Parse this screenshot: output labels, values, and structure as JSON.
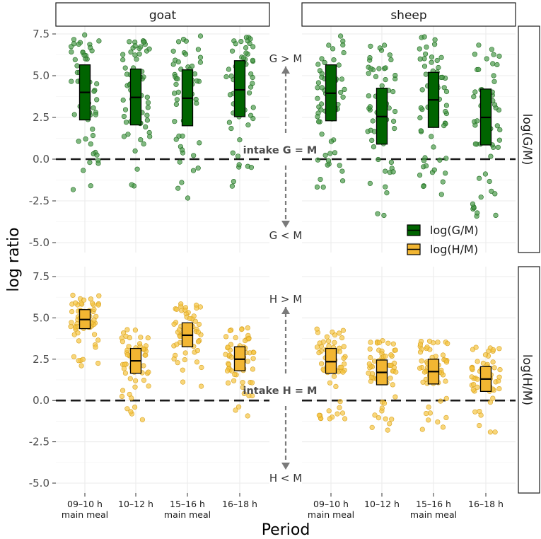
{
  "chart_data": {
    "type": "scatter",
    "ylabel": "log ratio",
    "xlabel": "Period",
    "ylim": [
      -5.3,
      7.6
    ],
    "yticks": [
      -5.0,
      -2.5,
      0.0,
      2.5,
      5.0,
      7.5
    ],
    "ytick_labels": [
      "-5.0",
      "-2.5",
      "0.0",
      "2.5",
      "5.0",
      "7.5"
    ],
    "reference_line_y": 0,
    "columns": [
      "goat",
      "sheep"
    ],
    "rows": [
      "log(G/M)",
      "log(H/M)"
    ],
    "categories": [
      {
        "line1": "09–10 h",
        "line2": "main meal"
      },
      {
        "line1": "10–12 h",
        "line2": ""
      },
      {
        "line1": "15–16 h",
        "line2": "main meal"
      },
      {
        "line1": "16–18 h",
        "line2": ""
      }
    ],
    "colors": {
      "G": "#006400",
      "H": "#f2b632",
      "G_point": "#4a9a4a",
      "H_point": "#f5c542"
    },
    "legend": [
      {
        "label": "log(G/M)",
        "color": "#006400"
      },
      {
        "label": "log(H/M)",
        "color": "#f2b632"
      }
    ],
    "legend_position": "inside, lower-right of top-left panel",
    "annotations": {
      "G_up": "G > M",
      "G_mid": "intake G = M",
      "G_down": "G < M",
      "H_up": "H > M",
      "H_mid": "intake H = M",
      "H_down": "H < M"
    },
    "series": [
      {
        "name": "log(G/M)",
        "animal": "goat",
        "boxes": [
          {
            "q1": 2.35,
            "median": 4.0,
            "q3": 5.65
          },
          {
            "q1": 2.05,
            "median": 3.7,
            "q3": 5.4
          },
          {
            "q1": 2.0,
            "median": 3.65,
            "q3": 5.35
          },
          {
            "q1": 2.55,
            "median": 4.15,
            "q3": 5.9
          }
        ]
      },
      {
        "name": "log(G/M)",
        "animal": "sheep",
        "boxes": [
          {
            "q1": 2.3,
            "median": 3.95,
            "q3": 5.65
          },
          {
            "q1": 0.9,
            "median": 2.55,
            "q3": 4.25
          },
          {
            "q1": 1.9,
            "median": 3.55,
            "q3": 5.2
          },
          {
            "q1": 0.85,
            "median": 2.5,
            "q3": 4.2
          }
        ]
      },
      {
        "name": "log(H/M)",
        "animal": "goat",
        "boxes": [
          {
            "q1": 4.35,
            "median": 4.9,
            "q3": 5.5
          },
          {
            "q1": 1.65,
            "median": 2.4,
            "q3": 3.15
          },
          {
            "q1": 3.25,
            "median": 3.95,
            "q3": 4.7
          },
          {
            "q1": 1.8,
            "median": 2.5,
            "q3": 3.25
          }
        ]
      },
      {
        "name": "log(H/M)",
        "animal": "sheep",
        "boxes": [
          {
            "q1": 1.65,
            "median": 2.35,
            "q3": 3.15
          },
          {
            "q1": 0.95,
            "median": 1.7,
            "q3": 2.45
          },
          {
            "q1": 1.0,
            "median": 1.75,
            "q3": 2.5
          },
          {
            "q1": 0.55,
            "median": 1.3,
            "q3": 2.05
          }
        ]
      }
    ]
  }
}
